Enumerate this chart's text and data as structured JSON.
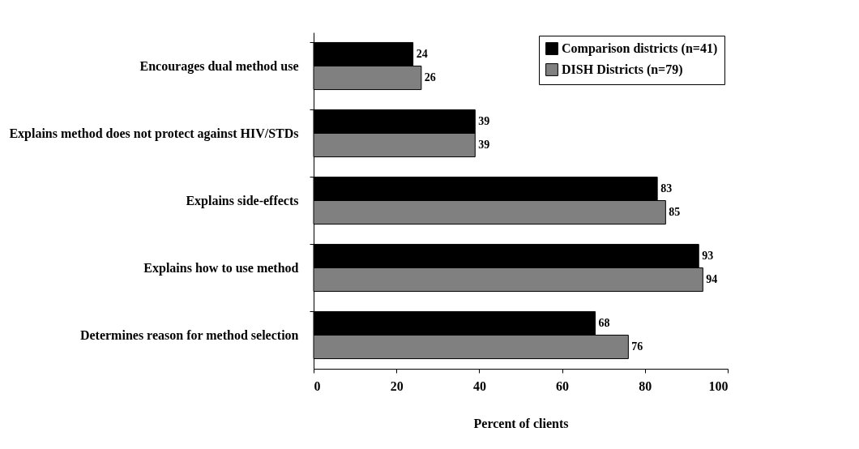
{
  "chart_data": {
    "type": "bar",
    "orientation": "horizontal",
    "xlabel": "Percent of clients",
    "categories": [
      "Encourages dual method use",
      "Explains method does not protect against HIV/STDs",
      "Explains side-effects",
      "Explains how to use method",
      "Determines reason for method selection"
    ],
    "series": [
      {
        "name": "Comparison districts (n=41)",
        "color": "#000000",
        "values": [
          24,
          39,
          83,
          93,
          68
        ]
      },
      {
        "name": "DISH Districts (n=79)",
        "color": "#808080",
        "values": [
          26,
          39,
          85,
          94,
          76
        ]
      }
    ],
    "xlim": [
      0,
      100
    ],
    "xticks": [
      0,
      20,
      40,
      60,
      80,
      100
    ],
    "data_labels": true,
    "legend": "top right"
  }
}
